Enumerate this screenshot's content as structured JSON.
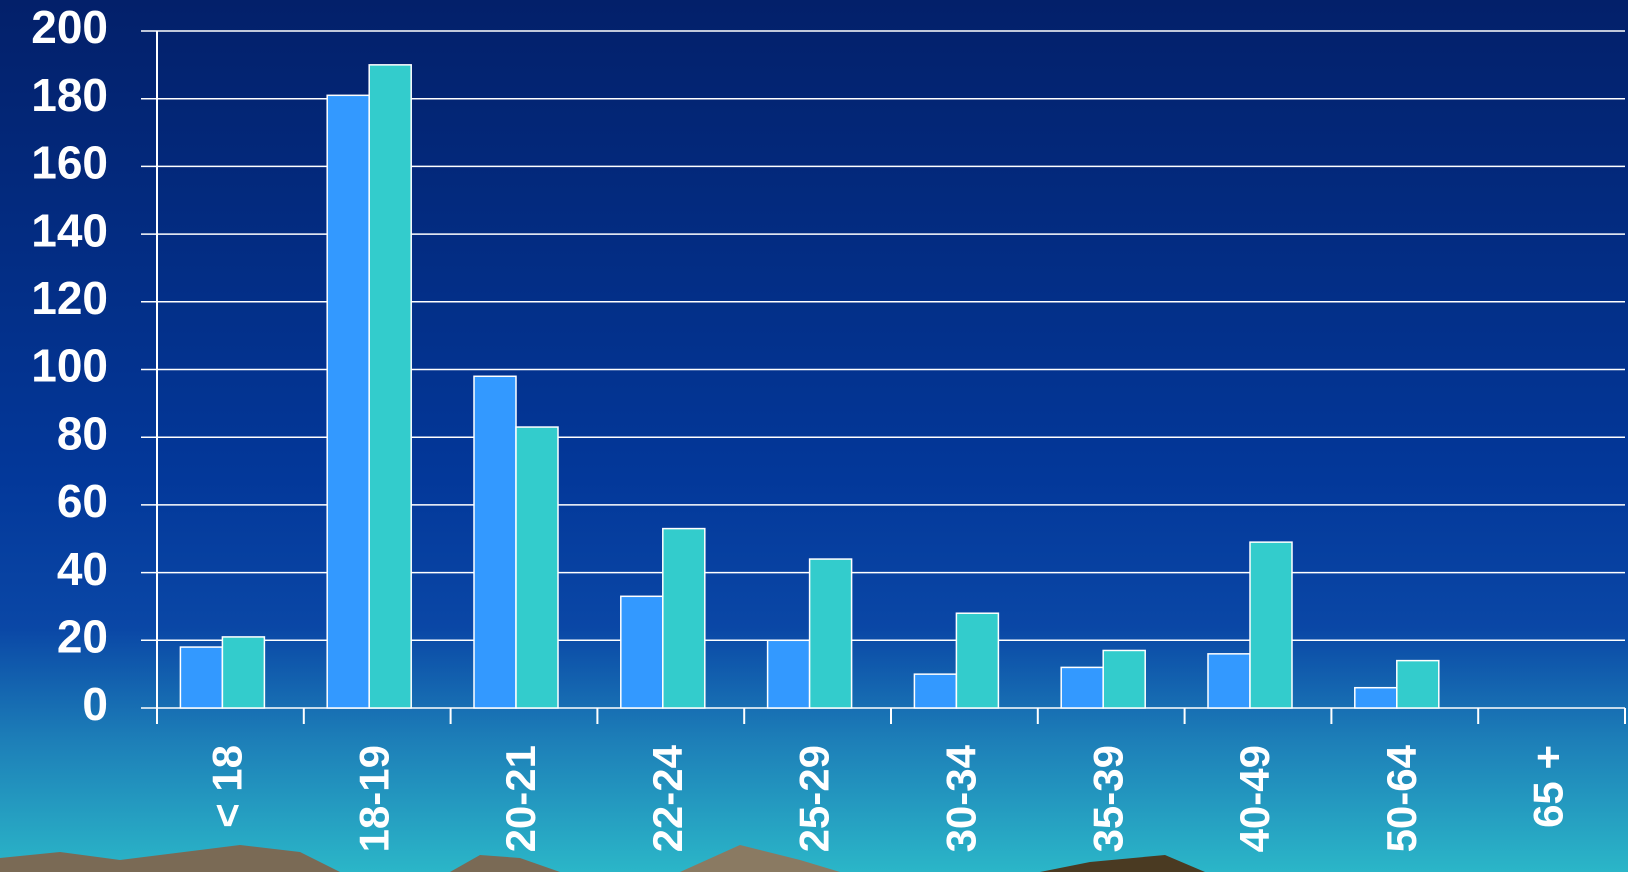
{
  "chart_data": {
    "type": "bar",
    "categories": [
      "< 18",
      "18-19",
      "20-21",
      "22-24",
      "25-29",
      "30-34",
      "35-39",
      "40-49",
      "50-64",
      "65 +"
    ],
    "series": [
      {
        "color": "#3399ff",
        "values": [
          18,
          181,
          98,
          33,
          20,
          10,
          12,
          16,
          6,
          null
        ]
      },
      {
        "color": "#33cccc",
        "values": [
          21,
          190,
          83,
          53,
          44,
          28,
          17,
          49,
          14,
          null
        ]
      }
    ],
    "ylim": [
      0,
      200
    ],
    "yticks": [
      0,
      20,
      40,
      60,
      80,
      100,
      120,
      140,
      160,
      180,
      200
    ],
    "grid": true
  }
}
